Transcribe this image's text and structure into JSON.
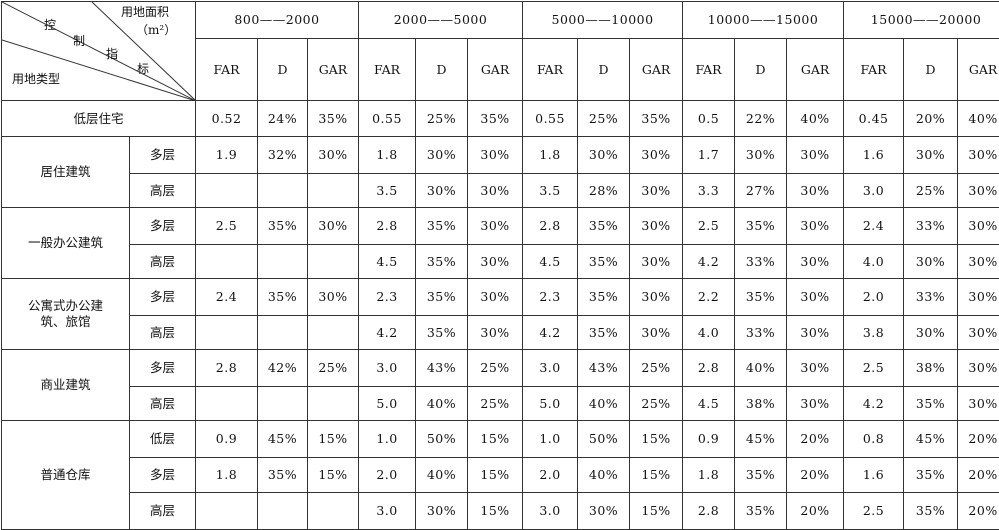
{
  "header": {
    "corner": {
      "area_label": "用地面积",
      "area_unit": "（m²）",
      "index_chars": [
        "控",
        "制",
        "指",
        "标"
      ],
      "type_label": "用地类型"
    },
    "ranges": [
      "800——2000",
      "2000——5000",
      "5000——10000",
      "10000——15000",
      "15000——20000"
    ],
    "metrics": [
      "FAR",
      "D",
      "GAR"
    ]
  },
  "rows": [
    {
      "group": "低层住宅",
      "sub": "",
      "values": [
        "0.52",
        "24%",
        "35%",
        "0.55",
        "25%",
        "35%",
        "0.55",
        "25%",
        "35%",
        "0.5",
        "22%",
        "40%",
        "0.45",
        "20%",
        "40%"
      ]
    },
    {
      "group": "居住建筑",
      "sub": "多层",
      "values": [
        "1.9",
        "32%",
        "30%",
        "1.8",
        "30%",
        "30%",
        "1.8",
        "30%",
        "30%",
        "1.7",
        "30%",
        "30%",
        "1.6",
        "30%",
        "30%"
      ]
    },
    {
      "group": "",
      "sub": "高层",
      "values": [
        "",
        "",
        "",
        "3.5",
        "30%",
        "30%",
        "3.5",
        "28%",
        "30%",
        "3.3",
        "27%",
        "30%",
        "3.0",
        "25%",
        "30%"
      ]
    },
    {
      "group": "一般办公建筑",
      "sub": "多层",
      "values": [
        "2.5",
        "35%",
        "30%",
        "2.8",
        "35%",
        "30%",
        "2.8",
        "35%",
        "30%",
        "2.5",
        "35%",
        "30%",
        "2.4",
        "33%",
        "30%"
      ]
    },
    {
      "group": "",
      "sub": "高层",
      "values": [
        "",
        "",
        "",
        "4.5",
        "35%",
        "30%",
        "4.5",
        "35%",
        "30%",
        "4.2",
        "33%",
        "30%",
        "4.0",
        "30%",
        "30%"
      ]
    },
    {
      "group": "公寓式办公建筑、旅馆",
      "sub": "多层",
      "values": [
        "2.4",
        "35%",
        "30%",
        "2.3",
        "35%",
        "30%",
        "2.3",
        "35%",
        "30%",
        "2.2",
        "35%",
        "30%",
        "2.0",
        "33%",
        "30%"
      ]
    },
    {
      "group": "",
      "sub": "高层",
      "values": [
        "",
        "",
        "",
        "4.2",
        "35%",
        "30%",
        "4.2",
        "35%",
        "30%",
        "4.0",
        "33%",
        "30%",
        "3.8",
        "30%",
        "30%"
      ]
    },
    {
      "group": "商业建筑",
      "sub": "多层",
      "values": [
        "2.8",
        "42%",
        "25%",
        "3.0",
        "43%",
        "25%",
        "3.0",
        "43%",
        "25%",
        "2.8",
        "40%",
        "30%",
        "2.5",
        "38%",
        "30%"
      ]
    },
    {
      "group": "",
      "sub": "高层",
      "values": [
        "",
        "",
        "",
        "5.0",
        "40%",
        "25%",
        "5.0",
        "40%",
        "25%",
        "4.5",
        "38%",
        "30%",
        "4.2",
        "35%",
        "30%"
      ]
    },
    {
      "group": "普通仓库",
      "sub": "低层",
      "values": [
        "0.9",
        "45%",
        "15%",
        "1.0",
        "50%",
        "15%",
        "1.0",
        "50%",
        "15%",
        "0.9",
        "45%",
        "20%",
        "0.8",
        "45%",
        "20%"
      ]
    },
    {
      "group": "",
      "sub": "多层",
      "values": [
        "1.8",
        "35%",
        "15%",
        "2.0",
        "40%",
        "15%",
        "2.0",
        "40%",
        "15%",
        "1.8",
        "35%",
        "20%",
        "1.6",
        "35%",
        "20%"
      ]
    },
    {
      "group": "",
      "sub": "高层",
      "values": [
        "",
        "",
        "",
        "3.0",
        "30%",
        "15%",
        "3.0",
        "30%",
        "15%",
        "2.8",
        "35%",
        "20%",
        "2.5",
        "35%",
        "20%"
      ]
    }
  ]
}
